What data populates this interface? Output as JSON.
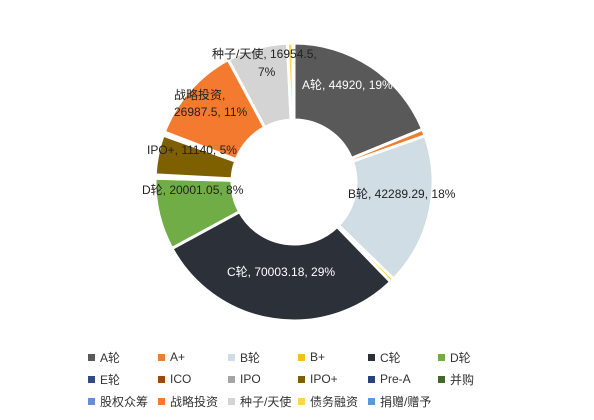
{
  "chart_data": {
    "type": "pie",
    "donut": true,
    "title": "",
    "legend_position": "bottom",
    "slices": [
      {
        "name": "A轮",
        "value": 44920,
        "percent": "19%",
        "color": "#595959"
      },
      {
        "name": "A+",
        "value": 1900,
        "percent": "",
        "color": "#ed7d31"
      },
      {
        "name": "B轮",
        "value": 42289.29,
        "percent": "18%",
        "color": "#d0dde4"
      },
      {
        "name": "B+",
        "value": 1100,
        "percent": "",
        "color": "#f4c20d"
      },
      {
        "name": "C轮",
        "value": 70003.18,
        "percent": "29%",
        "color": "#2c3038"
      },
      {
        "name": "D轮",
        "value": 20001.05,
        "percent": "8%",
        "color": "#70ad47"
      },
      {
        "name": "E轮",
        "value": 300,
        "percent": "",
        "color": "#2f4d7e"
      },
      {
        "name": "ICO",
        "value": 300,
        "percent": "",
        "color": "#9e480e"
      },
      {
        "name": "IPO",
        "value": 300,
        "percent": "",
        "color": "#a5a5a5"
      },
      {
        "name": "IPO+",
        "value": 11140,
        "percent": "5%",
        "color": "#7f6000"
      },
      {
        "name": "Pre-A",
        "value": 300,
        "percent": "",
        "color": "#264478"
      },
      {
        "name": "并购",
        "value": 300,
        "percent": "",
        "color": "#43682b"
      },
      {
        "name": "股权众筹",
        "value": 300,
        "percent": "",
        "color": "#698ed0"
      },
      {
        "name": "战略投资",
        "value": 26987.5,
        "percent": "11%",
        "color": "#f47a30"
      },
      {
        "name": "种子/天使",
        "value": 16954.5,
        "percent": "7%",
        "color": "#d4d4d4"
      },
      {
        "name": "债务融资",
        "value": 1500,
        "percent": "",
        "color": "#ffd54a"
      },
      {
        "name": "捐赠/赠予",
        "value": 300,
        "percent": "",
        "color": "#5b9bd5"
      }
    ],
    "labels": [
      {
        "text": "A轮, 44920, 19%",
        "slice": 0
      },
      {
        "text": "B轮, 42289.29, 18%",
        "slice": 2
      },
      {
        "text": "C轮, 70003.18, 29%",
        "slice": 4
      },
      {
        "text": "D轮, 20001.05, 8%",
        "slice": 5
      },
      {
        "text": "IPO+, 11140, 5%",
        "slice": 9
      },
      {
        "text": "战略投资,",
        "slice": 13
      },
      {
        "text": "26987.5, 11%",
        "slice": 13
      },
      {
        "text": "种子/天使, 16954.5,",
        "slice": 14
      },
      {
        "text": "7%",
        "slice": 14
      }
    ]
  }
}
